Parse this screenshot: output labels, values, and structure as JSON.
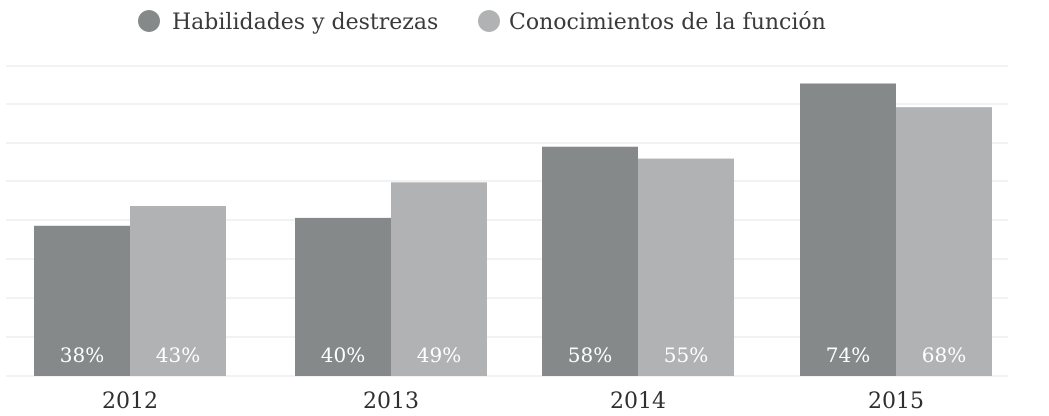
{
  "chart_data": {
    "type": "bar",
    "categories": [
      "2012",
      "2013",
      "2014",
      "2015"
    ],
    "series": [
      {
        "name": "Habilidades y destrezas",
        "values": [
          38,
          40,
          58,
          74
        ],
        "labels": [
          "38%",
          "40%",
          "58%",
          "74%"
        ],
        "color": "#858989"
      },
      {
        "name": "Conocimientos de la función",
        "values": [
          43,
          49,
          55,
          68
        ],
        "labels": [
          "43%",
          "49%",
          "55%",
          "68%"
        ],
        "color": "#b1b2b3"
      }
    ],
    "ylim": [
      0,
      85
    ],
    "grid": true,
    "legend": "top-left",
    "grid_color": "#e6e6e6",
    "xlabel": "",
    "ylabel": ""
  }
}
